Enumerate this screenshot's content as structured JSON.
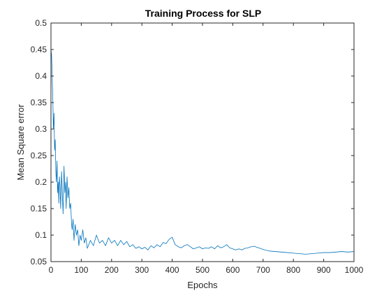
{
  "chart_data": {
    "type": "line",
    "title": "Training Process for SLP",
    "xlabel": "Epochs",
    "ylabel": "Mean Square error",
    "xlim": [
      0,
      1000
    ],
    "ylim": [
      0.05,
      0.5
    ],
    "xticks": [
      0,
      100,
      200,
      300,
      400,
      500,
      600,
      700,
      800,
      900,
      1000
    ],
    "yticks": [
      0.05,
      0.1,
      0.15,
      0.2,
      0.25,
      0.3,
      0.35,
      0.4,
      0.45,
      0.5
    ],
    "grid": false,
    "line_color": "#0072bd",
    "series": [
      {
        "x": [
          0,
          2,
          4,
          6,
          8,
          10,
          12,
          14,
          16,
          18,
          20,
          22,
          24,
          26,
          28,
          30,
          32,
          35,
          38,
          40,
          43,
          46,
          48,
          50,
          53,
          56,
          59,
          62,
          65,
          68,
          70,
          73,
          76,
          80,
          84,
          88,
          92,
          96,
          100,
          105,
          110,
          115,
          120,
          130,
          140,
          150,
          160,
          170,
          180,
          190,
          200,
          210,
          220,
          230,
          240,
          250,
          260,
          270,
          280,
          290,
          300,
          310,
          320,
          330,
          340,
          350,
          360,
          370,
          380,
          390,
          400,
          410,
          420,
          430,
          440,
          450,
          460,
          470,
          480,
          490,
          500,
          510,
          520,
          530,
          540,
          550,
          560,
          570,
          580,
          590,
          600,
          610,
          620,
          630,
          640,
          650,
          660,
          670,
          680,
          690,
          700,
          720,
          740,
          760,
          780,
          800,
          820,
          840,
          860,
          880,
          900,
          920,
          940,
          960,
          980,
          1000
        ],
        "y": [
          0.45,
          0.44,
          0.4,
          0.36,
          0.3,
          0.33,
          0.26,
          0.28,
          0.22,
          0.2,
          0.24,
          0.18,
          0.2,
          0.16,
          0.21,
          0.19,
          0.15,
          0.22,
          0.17,
          0.14,
          0.23,
          0.18,
          0.2,
          0.15,
          0.21,
          0.17,
          0.19,
          0.15,
          0.16,
          0.12,
          0.11,
          0.13,
          0.09,
          0.12,
          0.1,
          0.11,
          0.08,
          0.1,
          0.09,
          0.11,
          0.085,
          0.095,
          0.075,
          0.09,
          0.08,
          0.1,
          0.085,
          0.09,
          0.08,
          0.095,
          0.085,
          0.09,
          0.08,
          0.09,
          0.082,
          0.088,
          0.078,
          0.082,
          0.075,
          0.078,
          0.074,
          0.077,
          0.072,
          0.08,
          0.076,
          0.082,
          0.078,
          0.086,
          0.084,
          0.092,
          0.096,
          0.082,
          0.078,
          0.076,
          0.08,
          0.082,
          0.078,
          0.074,
          0.076,
          0.078,
          0.074,
          0.076,
          0.075,
          0.078,
          0.074,
          0.08,
          0.076,
          0.078,
          0.082,
          0.076,
          0.074,
          0.072,
          0.074,
          0.072,
          0.075,
          0.076,
          0.078,
          0.079,
          0.077,
          0.075,
          0.073,
          0.07,
          0.069,
          0.068,
          0.067,
          0.066,
          0.065,
          0.064,
          0.065,
          0.066,
          0.067,
          0.067,
          0.068,
          0.069,
          0.068,
          0.069
        ]
      }
    ]
  }
}
